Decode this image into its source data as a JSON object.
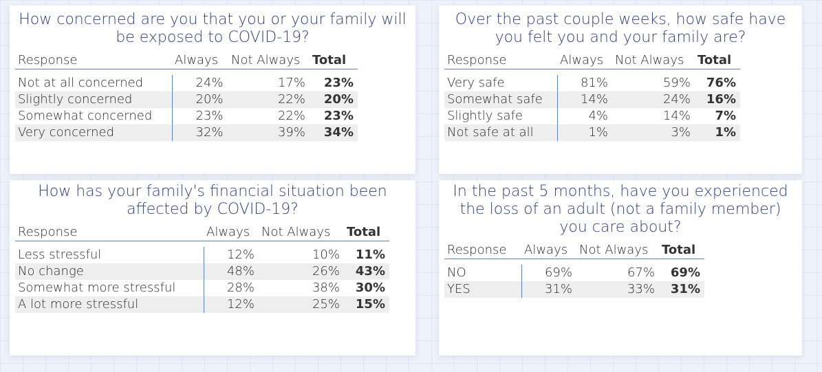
{
  "panels": [
    {
      "title": "How concerned are you that you or your family will be exposed to COVID-19?",
      "headers": {
        "response": "Response",
        "always": "Always",
        "not_always": "Not Always",
        "total": "Total"
      },
      "rows": [
        {
          "label": "Not at all concerned",
          "always": "24%",
          "not_always": "17%",
          "total": "23%"
        },
        {
          "label": "Slightly concerned",
          "always": "20%",
          "not_always": "22%",
          "total": "20%"
        },
        {
          "label": "Somewhat concerned",
          "always": "23%",
          "not_always": "22%",
          "total": "23%"
        },
        {
          "label": "Very concerned",
          "always": "32%",
          "not_always": "39%",
          "total": "34%"
        }
      ]
    },
    {
      "title": "Over the past couple weeks, how safe have you felt you and your family are?",
      "headers": {
        "response": "Response",
        "always": "Always",
        "not_always": "Not Always",
        "total": "Total"
      },
      "rows": [
        {
          "label": "Very safe",
          "always": "81%",
          "not_always": "59%",
          "total": "76%"
        },
        {
          "label": "Somewhat safe",
          "always": "14%",
          "not_always": "24%",
          "total": "16%"
        },
        {
          "label": "Slightly safe",
          "always": "4%",
          "not_always": "14%",
          "total": "7%"
        },
        {
          "label": "Not safe at all",
          "always": "1%",
          "not_always": "3%",
          "total": "1%"
        }
      ]
    },
    {
      "title": "How has your family's financial situation been affected by COVID-19?",
      "headers": {
        "response": "Response",
        "always": "Always",
        "not_always": "Not Always",
        "total": "Total"
      },
      "rows": [
        {
          "label": "Less stressful",
          "always": "12%",
          "not_always": "10%",
          "total": "11%"
        },
        {
          "label": "No change",
          "always": "48%",
          "not_always": "26%",
          "total": "43%"
        },
        {
          "label": "Somewhat more stressful",
          "always": "28%",
          "not_always": "38%",
          "total": "30%"
        },
        {
          "label": "A lot more stressful",
          "always": "12%",
          "not_always": "25%",
          "total": "15%"
        }
      ]
    },
    {
      "title": "In the past 5 months, have you experienced the loss of an adult (not a family member) you care about?",
      "headers": {
        "response": "Response",
        "always": "Always",
        "not_always": "Not Always",
        "total": "Total"
      },
      "rows": [
        {
          "label": "NO",
          "always": "69%",
          "not_always": "67%",
          "total": "69%"
        },
        {
          "label": "YES",
          "always": "31%",
          "not_always": "33%",
          "total": "31%"
        }
      ]
    }
  ]
}
